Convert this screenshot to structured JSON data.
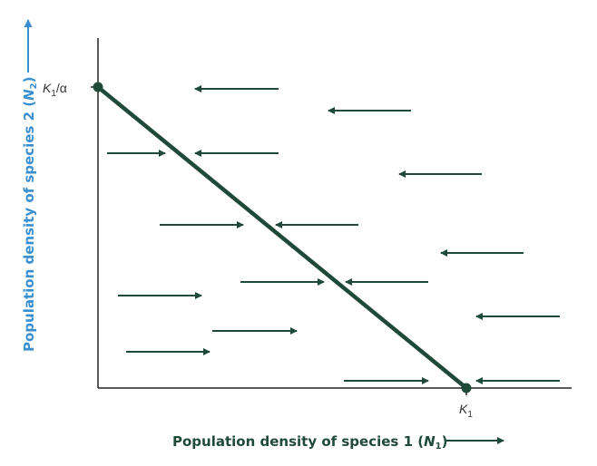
{
  "diagram": {
    "x_axis_label": "Population density of species 1 (",
    "x_axis_var": "N",
    "x_axis_sub": "1",
    "x_axis_close": ")",
    "y_axis_label": "Population density of species 2 (",
    "y_axis_var": "N",
    "y_axis_sub": "2",
    "y_axis_close": ")",
    "y_intercept_label": {
      "var": "K",
      "sub": "1",
      "rest": "/α"
    },
    "x_intercept_label": {
      "var": "K",
      "sub": "1"
    },
    "colors": {
      "isocline": "#1f4a3a",
      "arrows": "#1f4a3a",
      "x_title": "#1f4a3a",
      "y_title": "#3a8fd0",
      "axes": "#222222"
    }
  }
}
